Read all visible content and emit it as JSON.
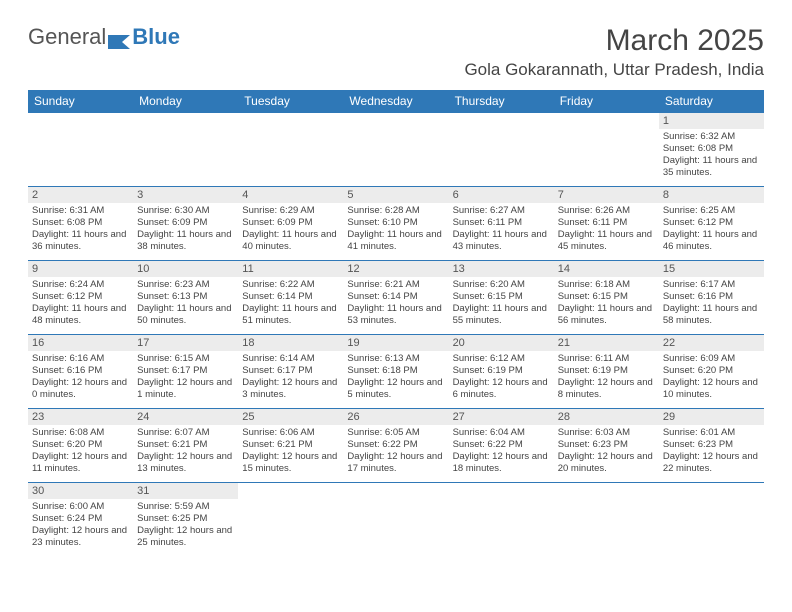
{
  "logo": {
    "text1": "General",
    "text2": "Blue",
    "text1_color": "#555555",
    "text2_color": "#2f78b7",
    "flag_color": "#2f78b7"
  },
  "title": "March 2025",
  "location": "Gola Gokarannath, Uttar Pradesh, India",
  "header_bg": "#2f78b7",
  "header_text_color": "#ffffff",
  "daynum_bg": "#ececec",
  "border_color": "#2f78b7",
  "detail_color": "#444444",
  "page_bg": "#ffffff",
  "title_fontsize": 30,
  "location_fontsize": 17,
  "header_fontsize": 12,
  "detail_fontsize": 9.5,
  "days": [
    "Sunday",
    "Monday",
    "Tuesday",
    "Wednesday",
    "Thursday",
    "Friday",
    "Saturday"
  ],
  "weeks": [
    [
      null,
      null,
      null,
      null,
      null,
      null,
      {
        "n": "1",
        "sunrise": "Sunrise: 6:32 AM",
        "sunset": "Sunset: 6:08 PM",
        "daylight": "Daylight: 11 hours and 35 minutes."
      }
    ],
    [
      {
        "n": "2",
        "sunrise": "Sunrise: 6:31 AM",
        "sunset": "Sunset: 6:08 PM",
        "daylight": "Daylight: 11 hours and 36 minutes."
      },
      {
        "n": "3",
        "sunrise": "Sunrise: 6:30 AM",
        "sunset": "Sunset: 6:09 PM",
        "daylight": "Daylight: 11 hours and 38 minutes."
      },
      {
        "n": "4",
        "sunrise": "Sunrise: 6:29 AM",
        "sunset": "Sunset: 6:09 PM",
        "daylight": "Daylight: 11 hours and 40 minutes."
      },
      {
        "n": "5",
        "sunrise": "Sunrise: 6:28 AM",
        "sunset": "Sunset: 6:10 PM",
        "daylight": "Daylight: 11 hours and 41 minutes."
      },
      {
        "n": "6",
        "sunrise": "Sunrise: 6:27 AM",
        "sunset": "Sunset: 6:11 PM",
        "daylight": "Daylight: 11 hours and 43 minutes."
      },
      {
        "n": "7",
        "sunrise": "Sunrise: 6:26 AM",
        "sunset": "Sunset: 6:11 PM",
        "daylight": "Daylight: 11 hours and 45 minutes."
      },
      {
        "n": "8",
        "sunrise": "Sunrise: 6:25 AM",
        "sunset": "Sunset: 6:12 PM",
        "daylight": "Daylight: 11 hours and 46 minutes."
      }
    ],
    [
      {
        "n": "9",
        "sunrise": "Sunrise: 6:24 AM",
        "sunset": "Sunset: 6:12 PM",
        "daylight": "Daylight: 11 hours and 48 minutes."
      },
      {
        "n": "10",
        "sunrise": "Sunrise: 6:23 AM",
        "sunset": "Sunset: 6:13 PM",
        "daylight": "Daylight: 11 hours and 50 minutes."
      },
      {
        "n": "11",
        "sunrise": "Sunrise: 6:22 AM",
        "sunset": "Sunset: 6:14 PM",
        "daylight": "Daylight: 11 hours and 51 minutes."
      },
      {
        "n": "12",
        "sunrise": "Sunrise: 6:21 AM",
        "sunset": "Sunset: 6:14 PM",
        "daylight": "Daylight: 11 hours and 53 minutes."
      },
      {
        "n": "13",
        "sunrise": "Sunrise: 6:20 AM",
        "sunset": "Sunset: 6:15 PM",
        "daylight": "Daylight: 11 hours and 55 minutes."
      },
      {
        "n": "14",
        "sunrise": "Sunrise: 6:18 AM",
        "sunset": "Sunset: 6:15 PM",
        "daylight": "Daylight: 11 hours and 56 minutes."
      },
      {
        "n": "15",
        "sunrise": "Sunrise: 6:17 AM",
        "sunset": "Sunset: 6:16 PM",
        "daylight": "Daylight: 11 hours and 58 minutes."
      }
    ],
    [
      {
        "n": "16",
        "sunrise": "Sunrise: 6:16 AM",
        "sunset": "Sunset: 6:16 PM",
        "daylight": "Daylight: 12 hours and 0 minutes."
      },
      {
        "n": "17",
        "sunrise": "Sunrise: 6:15 AM",
        "sunset": "Sunset: 6:17 PM",
        "daylight": "Daylight: 12 hours and 1 minute."
      },
      {
        "n": "18",
        "sunrise": "Sunrise: 6:14 AM",
        "sunset": "Sunset: 6:17 PM",
        "daylight": "Daylight: 12 hours and 3 minutes."
      },
      {
        "n": "19",
        "sunrise": "Sunrise: 6:13 AM",
        "sunset": "Sunset: 6:18 PM",
        "daylight": "Daylight: 12 hours and 5 minutes."
      },
      {
        "n": "20",
        "sunrise": "Sunrise: 6:12 AM",
        "sunset": "Sunset: 6:19 PM",
        "daylight": "Daylight: 12 hours and 6 minutes."
      },
      {
        "n": "21",
        "sunrise": "Sunrise: 6:11 AM",
        "sunset": "Sunset: 6:19 PM",
        "daylight": "Daylight: 12 hours and 8 minutes."
      },
      {
        "n": "22",
        "sunrise": "Sunrise: 6:09 AM",
        "sunset": "Sunset: 6:20 PM",
        "daylight": "Daylight: 12 hours and 10 minutes."
      }
    ],
    [
      {
        "n": "23",
        "sunrise": "Sunrise: 6:08 AM",
        "sunset": "Sunset: 6:20 PM",
        "daylight": "Daylight: 12 hours and 11 minutes."
      },
      {
        "n": "24",
        "sunrise": "Sunrise: 6:07 AM",
        "sunset": "Sunset: 6:21 PM",
        "daylight": "Daylight: 12 hours and 13 minutes."
      },
      {
        "n": "25",
        "sunrise": "Sunrise: 6:06 AM",
        "sunset": "Sunset: 6:21 PM",
        "daylight": "Daylight: 12 hours and 15 minutes."
      },
      {
        "n": "26",
        "sunrise": "Sunrise: 6:05 AM",
        "sunset": "Sunset: 6:22 PM",
        "daylight": "Daylight: 12 hours and 17 minutes."
      },
      {
        "n": "27",
        "sunrise": "Sunrise: 6:04 AM",
        "sunset": "Sunset: 6:22 PM",
        "daylight": "Daylight: 12 hours and 18 minutes."
      },
      {
        "n": "28",
        "sunrise": "Sunrise: 6:03 AM",
        "sunset": "Sunset: 6:23 PM",
        "daylight": "Daylight: 12 hours and 20 minutes."
      },
      {
        "n": "29",
        "sunrise": "Sunrise: 6:01 AM",
        "sunset": "Sunset: 6:23 PM",
        "daylight": "Daylight: 12 hours and 22 minutes."
      }
    ],
    [
      {
        "n": "30",
        "sunrise": "Sunrise: 6:00 AM",
        "sunset": "Sunset: 6:24 PM",
        "daylight": "Daylight: 12 hours and 23 minutes."
      },
      {
        "n": "31",
        "sunrise": "Sunrise: 5:59 AM",
        "sunset": "Sunset: 6:25 PM",
        "daylight": "Daylight: 12 hours and 25 minutes."
      },
      null,
      null,
      null,
      null,
      null
    ]
  ]
}
